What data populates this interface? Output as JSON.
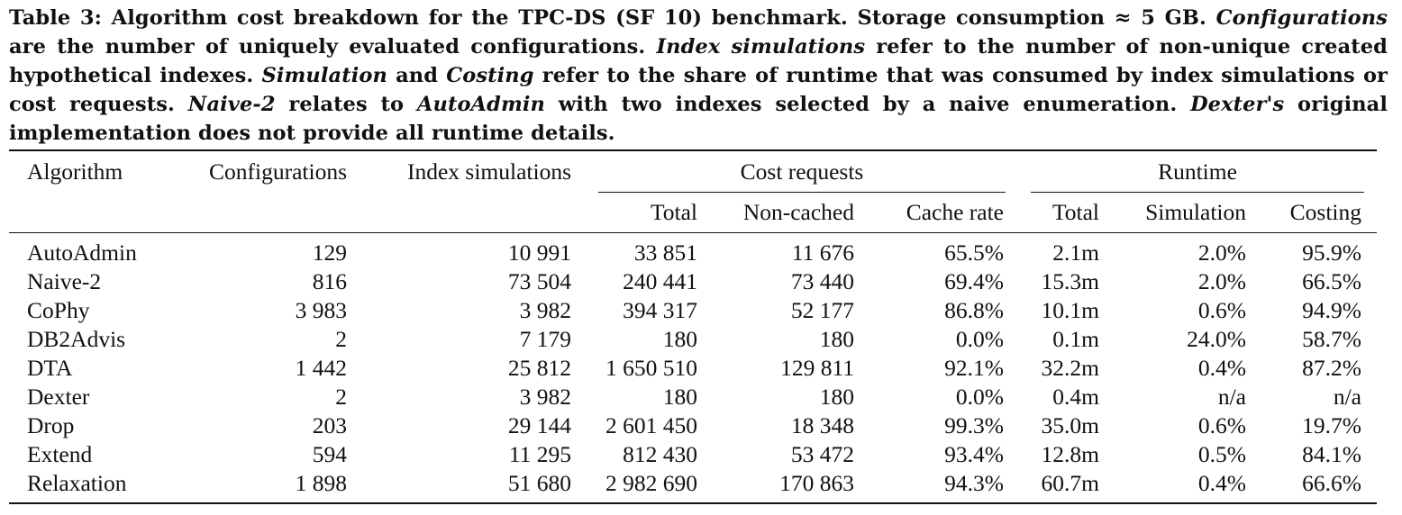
{
  "caption": {
    "label": "Table 3:",
    "sentences": [
      {
        "type": "plain",
        "text": " Algorithm cost breakdown for the TPC-DS (SF 10) benchmark.  Storage consumption ≈ 5 GB. "
      },
      {
        "type": "italic",
        "text": "Configurations"
      },
      {
        "type": "plain",
        "text": " are the number of uniquely evaluated configurations. "
      },
      {
        "type": "italic",
        "text": "Index simulations"
      },
      {
        "type": "plain",
        "text": " refer to the number of non-unique created hypothetical indexes. "
      },
      {
        "type": "italic",
        "text": "Simulation"
      },
      {
        "type": "plain",
        "text": " and "
      },
      {
        "type": "italic",
        "text": "Costing"
      },
      {
        "type": "plain",
        "text": " refer to the share of runtime that was consumed by index simulations or cost requests. "
      },
      {
        "type": "italic",
        "text": "Naive-2"
      },
      {
        "type": "plain",
        "text": " relates to "
      },
      {
        "type": "italic",
        "text": "AutoAdmin"
      },
      {
        "type": "plain",
        "text": " with two indexes selected by a naive enumeration. "
      },
      {
        "type": "italic",
        "text": "Dexter's"
      },
      {
        "type": "plain",
        "text": " original implementation does not provide all runtime details."
      }
    ]
  },
  "table": {
    "header_row1": {
      "algorithm": "Algorithm",
      "configurations": "Configurations",
      "index_simulations": "Index simulations",
      "cost_requests": "Cost requests",
      "runtime": "Runtime"
    },
    "header_row2": {
      "cost_total": "Total",
      "cost_noncached": "Non-cached",
      "cost_cache_rate": "Cache rate",
      "runtime_total": "Total",
      "runtime_simulation": "Simulation",
      "runtime_costing": "Costing"
    },
    "rows": [
      {
        "algorithm": "AutoAdmin",
        "configurations": "129",
        "index_simulations": "10 991",
        "cost_total": "33 851",
        "cost_noncached": "11 676",
        "cache_rate": "65.5%",
        "runtime_total": "2.1m",
        "simulation": "2.0%",
        "costing": "95.9%"
      },
      {
        "algorithm": "Naive-2",
        "configurations": "816",
        "index_simulations": "73 504",
        "cost_total": "240 441",
        "cost_noncached": "73 440",
        "cache_rate": "69.4%",
        "runtime_total": "15.3m",
        "simulation": "2.0%",
        "costing": "66.5%"
      },
      {
        "algorithm": "CoPhy",
        "configurations": "3 983",
        "index_simulations": "3 982",
        "cost_total": "394 317",
        "cost_noncached": "52 177",
        "cache_rate": "86.8%",
        "runtime_total": "10.1m",
        "simulation": "0.6%",
        "costing": "94.9%"
      },
      {
        "algorithm": "DB2Advis",
        "configurations": "2",
        "index_simulations": "7 179",
        "cost_total": "180",
        "cost_noncached": "180",
        "cache_rate": "0.0%",
        "runtime_total": "0.1m",
        "simulation": "24.0%",
        "costing": "58.7%"
      },
      {
        "algorithm": "DTA",
        "configurations": "1 442",
        "index_simulations": "25 812",
        "cost_total": "1 650 510",
        "cost_noncached": "129 811",
        "cache_rate": "92.1%",
        "runtime_total": "32.2m",
        "simulation": "0.4%",
        "costing": "87.2%"
      },
      {
        "algorithm": "Dexter",
        "configurations": "2",
        "index_simulations": "3 982",
        "cost_total": "180",
        "cost_noncached": "180",
        "cache_rate": "0.0%",
        "runtime_total": "0.4m",
        "simulation": "n/a",
        "costing": "n/a"
      },
      {
        "algorithm": "Drop",
        "configurations": "203",
        "index_simulations": "29 144",
        "cost_total": "2 601 450",
        "cost_noncached": "18 348",
        "cache_rate": "99.3%",
        "runtime_total": "35.0m",
        "simulation": "0.6%",
        "costing": "19.7%"
      },
      {
        "algorithm": "Extend",
        "configurations": "594",
        "index_simulations": "11 295",
        "cost_total": "812 430",
        "cost_noncached": "53 472",
        "cache_rate": "93.4%",
        "runtime_total": "12.8m",
        "simulation": "0.5%",
        "costing": "84.1%"
      },
      {
        "algorithm": "Relaxation",
        "configurations": "1 898",
        "index_simulations": "51 680",
        "cost_total": "2 982 690",
        "cost_noncached": "170 863",
        "cache_rate": "94.3%",
        "runtime_total": "60.7m",
        "simulation": "0.4%",
        "costing": "66.6%"
      }
    ]
  }
}
